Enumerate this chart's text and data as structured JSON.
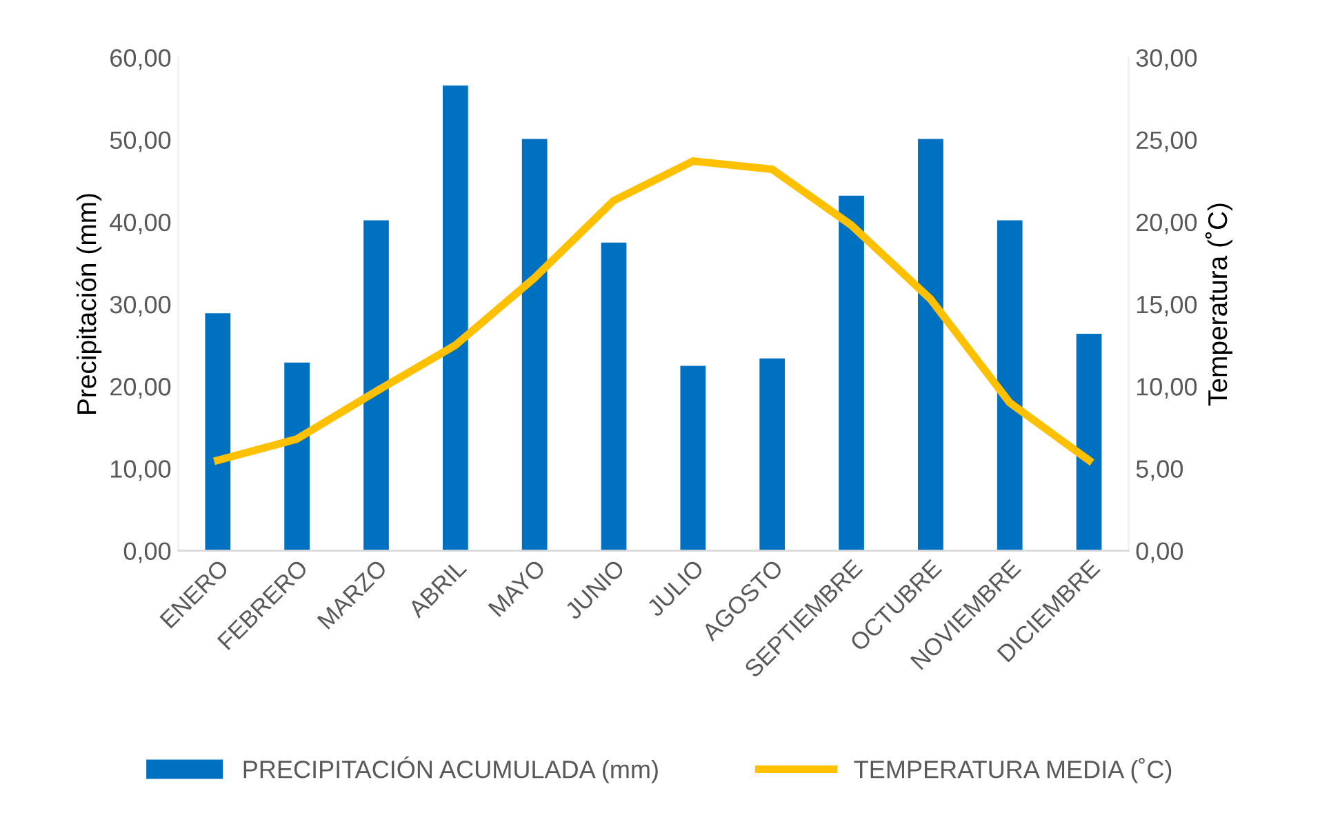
{
  "chart_data": {
    "type": "bar",
    "ylabel": "Precipitación (mm)",
    "y2label": "Temperatura (˚C)",
    "categories": [
      "ENERO",
      "FEBRERO",
      "MARZO",
      "ABRIL",
      "MAYO",
      "JUNIO",
      "JULIO",
      "AGOSTO",
      "SEPTIEMBRE",
      "OCTUBRE",
      "NOVIEMBRE",
      "DICIEMBRE"
    ],
    "series": [
      {
        "name": "PRECIPITACIÓN ACUMULADA (mm)",
        "color": "#0070c0",
        "values": [
          28.9,
          22.9,
          40.2,
          56.6,
          50.1,
          37.5,
          22.5,
          23.4,
          43.2,
          50.1,
          40.2,
          26.4
        ]
      },
      {
        "name": "TEMPERATURA MEDIA (˚C)",
        "type": "line",
        "axis": "y2",
        "color": "#ffc000",
        "values": [
          5.5,
          6.8,
          9.7,
          12.5,
          16.6,
          21.3,
          23.7,
          23.2,
          19.8,
          15.3,
          9.0,
          5.5
        ]
      }
    ],
    "ylim": [
      0,
      60
    ],
    "yticks": [
      {
        "value": 0,
        "label": "0,00"
      },
      {
        "value": 10,
        "label": "10,00"
      },
      {
        "value": 20,
        "label": "20,00"
      },
      {
        "value": 30,
        "label": "30,00"
      },
      {
        "value": 40,
        "label": "40,00"
      },
      {
        "value": 50,
        "label": "50,00"
      },
      {
        "value": 60,
        "label": "60,00"
      }
    ],
    "y2lim": [
      0,
      30
    ],
    "y2ticks": [
      {
        "value": 0,
        "label": "0,00"
      },
      {
        "value": 5,
        "label": "5,00"
      },
      {
        "value": 10,
        "label": "10,00"
      },
      {
        "value": 15,
        "label": "15,00"
      },
      {
        "value": 20,
        "label": "20,00"
      },
      {
        "value": 25,
        "label": "25,00"
      },
      {
        "value": 30,
        "label": "30,00"
      }
    ],
    "legend": "bottom",
    "grid": false,
    "marker": "none",
    "line_style": "solid"
  }
}
